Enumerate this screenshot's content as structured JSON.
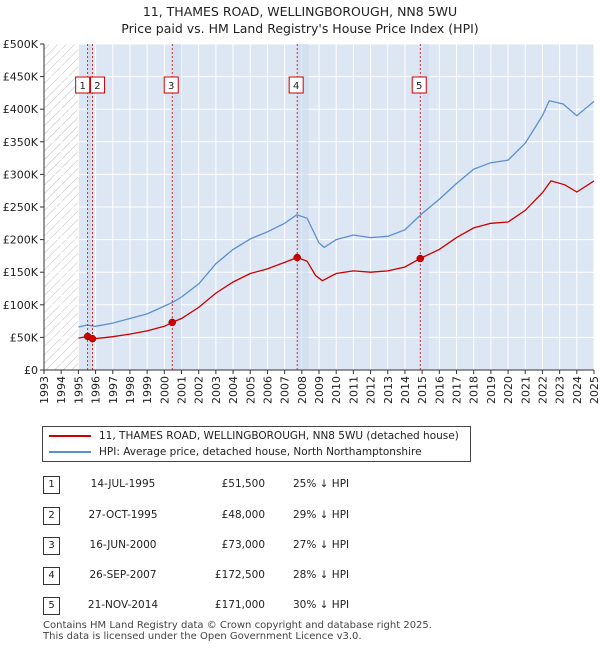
{
  "title": "11, THAMES ROAD, WELLINGBOROUGH, NN8 5WU",
  "subtitle": "Price paid vs. HM Land Registry's House Price Index (HPI)",
  "colors": {
    "property": "#cc0000",
    "hpi": "#5b8fd0",
    "band": "#dde6f3",
    "hatch": "#bbbbbb"
  },
  "chart_data": {
    "type": "line",
    "xlim": [
      1993,
      2025
    ],
    "ylim": [
      0,
      500000
    ],
    "x_ticks": [
      "1993",
      "1994",
      "1995",
      "1996",
      "1997",
      "1998",
      "1999",
      "2000",
      "2001",
      "2002",
      "2003",
      "2004",
      "2005",
      "2006",
      "2007",
      "2008",
      "2009",
      "2010",
      "2011",
      "2012",
      "2013",
      "2014",
      "2015",
      "2016",
      "2017",
      "2018",
      "2019",
      "2020",
      "2021",
      "2022",
      "2023",
      "2024",
      "2025"
    ],
    "y_ticks": [
      {
        "value": 0,
        "label": "£0"
      },
      {
        "value": 50000,
        "label": "£50K"
      },
      {
        "value": 100000,
        "label": "£100K"
      },
      {
        "value": 150000,
        "label": "£150K"
      },
      {
        "value": 200000,
        "label": "£200K"
      },
      {
        "value": 250000,
        "label": "£250K"
      },
      {
        "value": 300000,
        "label": "£300K"
      },
      {
        "value": 350000,
        "label": "£350K"
      },
      {
        "value": 400000,
        "label": "£400K"
      },
      {
        "value": 450000,
        "label": "£450K"
      },
      {
        "value": 500000,
        "label": "£500K"
      }
    ],
    "grid": true,
    "series": [
      {
        "name": "11, THAMES ROAD, WELLINGBOROUGH, NN8 5WU (detached house)",
        "color": "#cc0000",
        "points": [
          [
            1995.0,
            49000
          ],
          [
            1995.54,
            51500
          ],
          [
            1995.82,
            48000
          ],
          [
            1996.5,
            49500
          ],
          [
            1997.0,
            51000
          ],
          [
            1998.0,
            55000
          ],
          [
            1999.0,
            60000
          ],
          [
            2000.0,
            67000
          ],
          [
            2000.46,
            73000
          ],
          [
            2001.0,
            79000
          ],
          [
            2002.0,
            96000
          ],
          [
            2003.0,
            118000
          ],
          [
            2004.0,
            135000
          ],
          [
            2005.0,
            148000
          ],
          [
            2006.0,
            155000
          ],
          [
            2007.0,
            165000
          ],
          [
            2007.73,
            172500
          ],
          [
            2008.3,
            167000
          ],
          [
            2008.8,
            145000
          ],
          [
            2009.2,
            137000
          ],
          [
            2010.0,
            148000
          ],
          [
            2011.0,
            152000
          ],
          [
            2012.0,
            150000
          ],
          [
            2013.0,
            152000
          ],
          [
            2014.0,
            158000
          ],
          [
            2014.89,
            171000
          ],
          [
            2016.0,
            185000
          ],
          [
            2017.0,
            203000
          ],
          [
            2018.0,
            218000
          ],
          [
            2019.0,
            225000
          ],
          [
            2020.0,
            227000
          ],
          [
            2021.0,
            245000
          ],
          [
            2022.0,
            272000
          ],
          [
            2022.5,
            290000
          ],
          [
            2023.3,
            284000
          ],
          [
            2024.0,
            273000
          ],
          [
            2025.0,
            290000
          ]
        ]
      },
      {
        "name": "HPI: Average price, detached house, North Northamptonshire",
        "color": "#5b8fd0",
        "points": [
          [
            1995.0,
            66000
          ],
          [
            1995.5,
            69000
          ],
          [
            1996.0,
            67000
          ],
          [
            1997.0,
            72000
          ],
          [
            1998.0,
            79000
          ],
          [
            1999.0,
            86000
          ],
          [
            2000.0,
            98000
          ],
          [
            2000.5,
            104000
          ],
          [
            2001.0,
            112000
          ],
          [
            2002.0,
            132000
          ],
          [
            2003.0,
            163000
          ],
          [
            2004.0,
            185000
          ],
          [
            2005.0,
            201000
          ],
          [
            2006.0,
            212000
          ],
          [
            2007.0,
            225000
          ],
          [
            2007.7,
            238000
          ],
          [
            2008.3,
            233000
          ],
          [
            2009.0,
            195000
          ],
          [
            2009.3,
            188000
          ],
          [
            2010.0,
            200000
          ],
          [
            2011.0,
            207000
          ],
          [
            2012.0,
            203000
          ],
          [
            2013.0,
            205000
          ],
          [
            2014.0,
            215000
          ],
          [
            2015.0,
            240000
          ],
          [
            2016.0,
            262000
          ],
          [
            2017.0,
            286000
          ],
          [
            2018.0,
            308000
          ],
          [
            2019.0,
            318000
          ],
          [
            2020.0,
            322000
          ],
          [
            2021.0,
            348000
          ],
          [
            2022.0,
            390000
          ],
          [
            2022.4,
            413000
          ],
          [
            2023.2,
            408000
          ],
          [
            2024.0,
            390000
          ],
          [
            2025.0,
            412000
          ]
        ]
      }
    ],
    "annotations": [
      {
        "label": "1",
        "x": 1995.54,
        "y": 51500
      },
      {
        "label": "2",
        "x": 1995.82,
        "y": 48000
      },
      {
        "label": "3",
        "x": 2000.46,
        "y": 73000
      },
      {
        "label": "4",
        "x": 2007.73,
        "y": 172500
      },
      {
        "label": "5",
        "x": 2014.89,
        "y": 171000
      }
    ],
    "hatched_region": [
      1993,
      1995.0
    ],
    "shaded_bands": [
      [
        1995.54,
        1995.82
      ],
      [
        2000.46,
        2001.0
      ],
      [
        2007.73,
        2008.4
      ],
      [
        2014.89,
        2015.4
      ]
    ]
  },
  "legend": [
    {
      "label": "11, THAMES ROAD, WELLINGBOROUGH, NN8 5WU (detached house)",
      "color": "#cc0000"
    },
    {
      "label": "HPI: Average price, detached house, North Northamptonshire",
      "color": "#5b8fd0"
    }
  ],
  "transactions": [
    {
      "num": "1",
      "date": "14-JUL-1995",
      "price": "£51,500",
      "hpi": "25% ↓ HPI"
    },
    {
      "num": "2",
      "date": "27-OCT-1995",
      "price": "£48,000",
      "hpi": "29% ↓ HPI"
    },
    {
      "num": "3",
      "date": "16-JUN-2000",
      "price": "£73,000",
      "hpi": "27% ↓ HPI"
    },
    {
      "num": "4",
      "date": "26-SEP-2007",
      "price": "£172,500",
      "hpi": "28% ↓ HPI"
    },
    {
      "num": "5",
      "date": "21-NOV-2014",
      "price": "£171,000",
      "hpi": "30% ↓ HPI"
    }
  ],
  "footer": {
    "line1": "Contains HM Land Registry data © Crown copyright and database right 2025.",
    "line2": "This data is licensed under the Open Government Licence v3.0."
  }
}
